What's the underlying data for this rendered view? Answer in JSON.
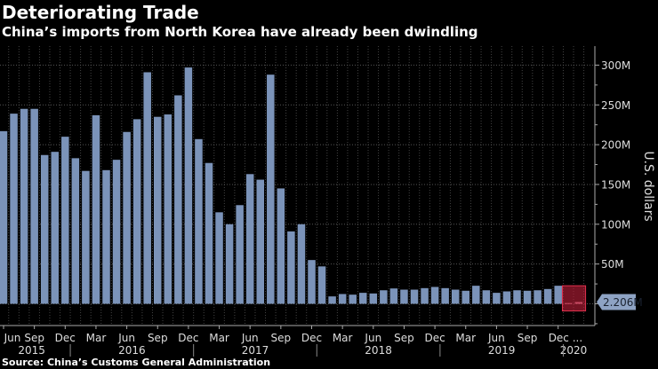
{
  "chart_data": {
    "type": "bar",
    "title": "Deteriorating Trade",
    "subtitle": "China’s imports from North Korea have already been dwindling",
    "source": "Source: China’s Customs General Administration",
    "ylabel": "U.S. dollars",
    "ylim": [
      -25,
      300
    ],
    "yticks": [
      {
        "v": 50,
        "label": "50M"
      },
      {
        "v": 100,
        "label": "100M"
      },
      {
        "v": 150,
        "label": "150M"
      },
      {
        "v": 200,
        "label": "200M"
      },
      {
        "v": 250,
        "label": "250M"
      },
      {
        "v": 300,
        "label": "300M"
      }
    ],
    "grid": true,
    "start_month": "2015-06",
    "values": [
      217,
      239,
      245,
      245,
      187,
      191,
      210,
      183,
      167,
      237,
      168,
      181,
      216,
      232,
      291,
      235,
      238,
      262,
      297,
      207,
      177,
      115,
      100,
      124,
      163,
      156,
      288,
      145,
      91,
      100,
      55,
      47,
      9.3,
      12.3,
      11.5,
      13.8,
      13,
      17,
      19.3,
      17.8,
      17.8,
      19.7,
      21.2,
      19.7,
      17.8,
      16.4,
      22.7,
      17,
      13.8,
      15.6,
      17,
      16.4,
      17,
      18.6,
      22.7,
      0.9,
      2.206
    ],
    "month_labels": [
      {
        "i": 0,
        "label": "Jun"
      },
      {
        "i": 3,
        "label": "Sep"
      },
      {
        "i": 6,
        "label": "Dec"
      },
      {
        "i": 9,
        "label": "Mar"
      },
      {
        "i": 12,
        "label": "Jun"
      },
      {
        "i": 15,
        "label": "Sep"
      },
      {
        "i": 18,
        "label": "Dec"
      },
      {
        "i": 21,
        "label": "Mar"
      },
      {
        "i": 24,
        "label": "Jun"
      },
      {
        "i": 27,
        "label": "Sep"
      },
      {
        "i": 30,
        "label": "Dec"
      },
      {
        "i": 33,
        "label": "Mar"
      },
      {
        "i": 36,
        "label": "Jun"
      },
      {
        "i": 39,
        "label": "Sep"
      },
      {
        "i": 42,
        "label": "Dec"
      },
      {
        "i": 45,
        "label": "Mar"
      },
      {
        "i": 48,
        "label": "Jun"
      },
      {
        "i": 51,
        "label": "Sep"
      },
      {
        "i": 54,
        "label": "Dec ..."
      }
    ],
    "year_labels": [
      {
        "from": 0,
        "to": 6,
        "label": "2015"
      },
      {
        "from": 7,
        "to": 18,
        "label": "2016"
      },
      {
        "from": 19,
        "to": 30,
        "label": "2017"
      },
      {
        "from": 31,
        "to": 42,
        "label": "2018"
      },
      {
        "from": 43,
        "to": 54,
        "label": "2019"
      },
      {
        "from": 55,
        "to": 56,
        "label": "2020"
      }
    ],
    "highlight": {
      "from": 55,
      "to": 56
    },
    "last_value_label": "2.206M",
    "colors": {
      "bar": "#7b93b9",
      "highlight": "#c21f3a",
      "callout": "#8ea3c4"
    }
  }
}
